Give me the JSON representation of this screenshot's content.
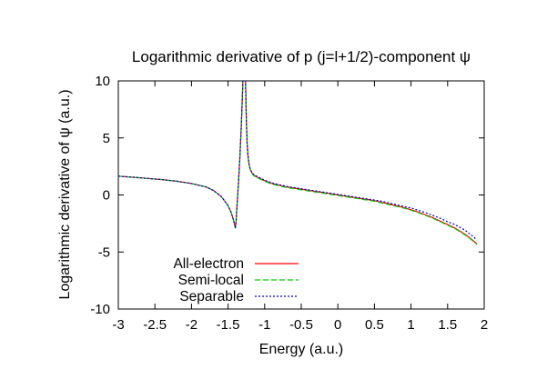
{
  "chart_data": {
    "type": "line",
    "title": "Logarithmic derivative of p (j=l+1/2)-component ψ",
    "xlabel": "Energy (a.u.)",
    "ylabel": "Logarithmic derivative of ψ (a.u.)",
    "xlim": [
      -3,
      2
    ],
    "ylim": [
      -10,
      10
    ],
    "xticks": [
      -3,
      -2.5,
      -2,
      -1.5,
      -1,
      -0.5,
      0,
      0.5,
      1,
      1.5,
      2
    ],
    "xtick_labels": [
      "-3",
      "-2.5",
      "-2",
      "-1.5",
      "-1",
      "-0.5",
      "0",
      "0.5",
      "1",
      "1.5",
      "2"
    ],
    "yticks": [
      -10,
      -5,
      0,
      5,
      10
    ],
    "ytick_labels": [
      "-10",
      "-5",
      "0",
      "5",
      "10"
    ],
    "grid": false,
    "legend_position": "bottom-left",
    "pole_energy": -1.28,
    "series": [
      {
        "name": "All-electron",
        "color": "#ff0000",
        "dash": "solid",
        "x": [
          -3.0,
          -2.8,
          -2.6,
          -2.4,
          -2.2,
          -2.0,
          -1.8,
          -1.7,
          -1.6,
          -1.55,
          -1.5,
          -1.46,
          -1.43,
          -1.41,
          -1.4,
          -1.39,
          -1.38,
          -1.36,
          -1.34,
          -1.32,
          -1.3,
          -1.29,
          -1.28,
          -1.27,
          -1.26,
          -1.25,
          -1.24,
          -1.23,
          -1.22,
          -1.21,
          -1.2,
          -1.18,
          -1.15,
          -1.1,
          -1.0,
          -0.9,
          -0.8,
          -0.7,
          -0.6,
          -0.5,
          -0.4,
          -0.3,
          -0.2,
          -0.1,
          0.0,
          0.1,
          0.2,
          0.3,
          0.4,
          0.5,
          0.6,
          0.7,
          0.8,
          0.9,
          1.0,
          1.1,
          1.2,
          1.3,
          1.4,
          1.5,
          1.6,
          1.7,
          1.75,
          1.8,
          1.85,
          1.9
        ],
        "y": [
          1.65,
          1.55,
          1.45,
          1.35,
          1.2,
          1.0,
          0.7,
          0.4,
          -0.1,
          -0.5,
          -0.95,
          -1.5,
          -2.1,
          -2.6,
          -2.9,
          -2.3,
          -1.2,
          0.9,
          3.2,
          6.0,
          9.5,
          12.0,
          13.0,
          12.0,
          9.5,
          6.5,
          4.6,
          3.6,
          3.0,
          2.6,
          2.3,
          2.0,
          1.75,
          1.55,
          1.25,
          1.0,
          0.85,
          0.7,
          0.6,
          0.5,
          0.4,
          0.3,
          0.2,
          0.1,
          0.0,
          -0.1,
          -0.2,
          -0.3,
          -0.4,
          -0.5,
          -0.65,
          -0.8,
          -0.95,
          -1.1,
          -1.3,
          -1.5,
          -1.75,
          -2.0,
          -2.3,
          -2.6,
          -2.9,
          -3.3,
          -3.5,
          -3.75,
          -4.0,
          -4.3
        ]
      },
      {
        "name": "Semi-local",
        "color": "#00cc00",
        "dash": "6,3",
        "x": [
          -3.0,
          -2.8,
          -2.6,
          -2.4,
          -2.2,
          -2.0,
          -1.8,
          -1.7,
          -1.6,
          -1.55,
          -1.5,
          -1.46,
          -1.43,
          -1.41,
          -1.4,
          -1.39,
          -1.38,
          -1.36,
          -1.34,
          -1.32,
          -1.3,
          -1.29,
          -1.28,
          -1.27,
          -1.26,
          -1.25,
          -1.24,
          -1.23,
          -1.22,
          -1.21,
          -1.2,
          -1.18,
          -1.15,
          -1.1,
          -1.0,
          -0.9,
          -0.8,
          -0.7,
          -0.6,
          -0.5,
          -0.4,
          -0.3,
          -0.2,
          -0.1,
          0.0,
          0.1,
          0.2,
          0.3,
          0.4,
          0.5,
          0.6,
          0.7,
          0.8,
          0.9,
          1.0,
          1.1,
          1.2,
          1.3,
          1.4,
          1.5,
          1.6,
          1.7,
          1.75,
          1.8,
          1.85,
          1.9
        ],
        "y": [
          1.65,
          1.55,
          1.45,
          1.35,
          1.2,
          1.0,
          0.7,
          0.4,
          -0.1,
          -0.5,
          -0.95,
          -1.5,
          -2.1,
          -2.6,
          -2.9,
          -2.3,
          -1.2,
          0.9,
          3.2,
          6.0,
          9.5,
          12.0,
          13.0,
          12.0,
          9.5,
          6.5,
          4.6,
          3.6,
          3.0,
          2.6,
          2.3,
          1.95,
          1.7,
          1.5,
          1.2,
          0.95,
          0.8,
          0.65,
          0.55,
          0.45,
          0.35,
          0.25,
          0.15,
          0.05,
          -0.05,
          -0.15,
          -0.25,
          -0.35,
          -0.45,
          -0.55,
          -0.7,
          -0.85,
          -1.0,
          -1.15,
          -1.35,
          -1.55,
          -1.8,
          -2.05,
          -2.35,
          -2.65,
          -2.95,
          -3.35,
          -3.55,
          -3.8,
          -4.05,
          -4.35
        ]
      },
      {
        "name": "Separable",
        "color": "#0000cc",
        "dash": "2,2",
        "x": [
          -3.0,
          -2.8,
          -2.6,
          -2.4,
          -2.2,
          -2.0,
          -1.8,
          -1.7,
          -1.6,
          -1.55,
          -1.5,
          -1.46,
          -1.43,
          -1.41,
          -1.4,
          -1.39,
          -1.38,
          -1.36,
          -1.34,
          -1.32,
          -1.3,
          -1.29,
          -1.28,
          -1.27,
          -1.26,
          -1.25,
          -1.24,
          -1.23,
          -1.22,
          -1.21,
          -1.2,
          -1.18,
          -1.15,
          -1.1,
          -1.0,
          -0.9,
          -0.8,
          -0.7,
          -0.6,
          -0.5,
          -0.4,
          -0.3,
          -0.2,
          -0.1,
          0.0,
          0.1,
          0.2,
          0.3,
          0.4,
          0.5,
          0.6,
          0.7,
          0.8,
          0.9,
          1.0,
          1.1,
          1.2,
          1.3,
          1.4,
          1.5,
          1.6,
          1.7,
          1.75,
          1.8,
          1.85,
          1.9
        ],
        "y": [
          1.65,
          1.55,
          1.45,
          1.35,
          1.2,
          1.0,
          0.7,
          0.4,
          -0.1,
          -0.5,
          -0.95,
          -1.5,
          -2.1,
          -2.6,
          -2.9,
          -2.3,
          -1.2,
          0.9,
          3.2,
          6.0,
          9.5,
          12.0,
          13.0,
          12.0,
          9.5,
          6.5,
          4.6,
          3.6,
          3.0,
          2.6,
          2.35,
          2.05,
          1.8,
          1.6,
          1.3,
          1.05,
          0.9,
          0.75,
          0.65,
          0.55,
          0.45,
          0.35,
          0.25,
          0.15,
          0.05,
          -0.05,
          -0.15,
          -0.25,
          -0.35,
          -0.45,
          -0.55,
          -0.7,
          -0.85,
          -1.0,
          -1.15,
          -1.35,
          -1.55,
          -1.8,
          -2.05,
          -2.35,
          -2.6,
          -2.95,
          -3.15,
          -3.4,
          -3.65,
          -3.95
        ]
      }
    ]
  }
}
